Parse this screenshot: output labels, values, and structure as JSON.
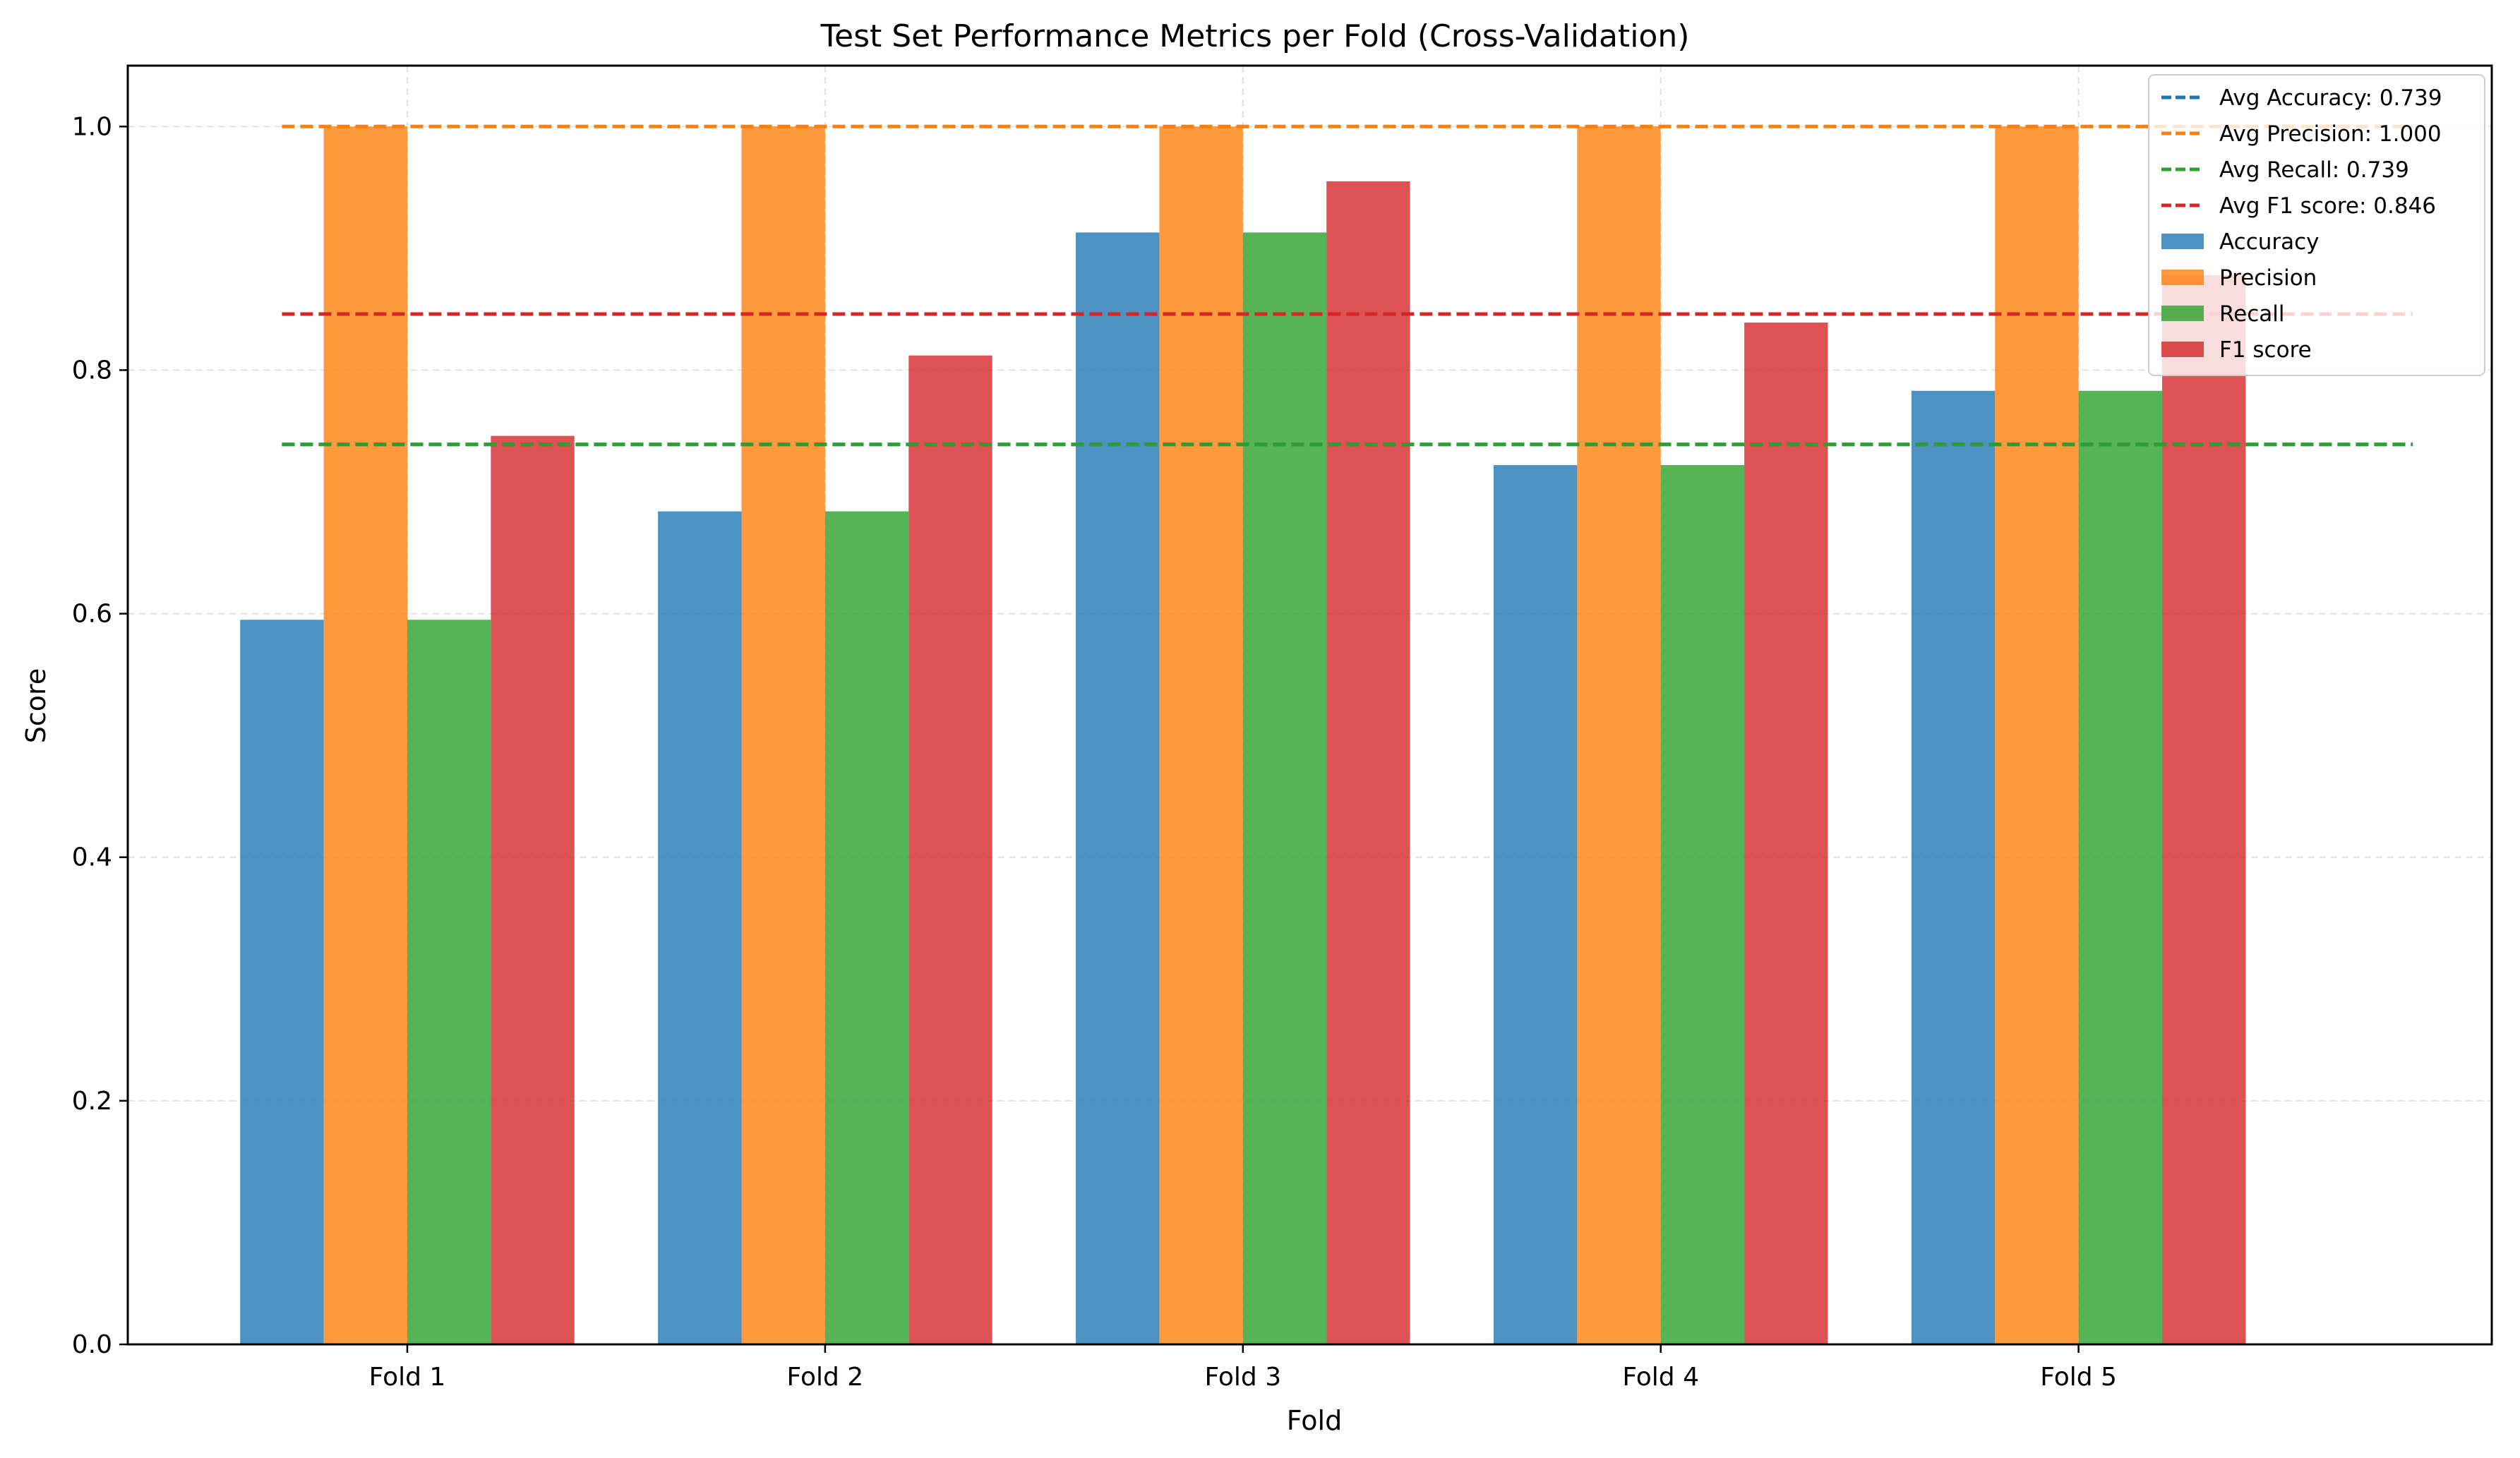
{
  "chart_data": {
    "type": "bar",
    "title": "Test Set Performance Metrics per Fold (Cross-Validation)",
    "xlabel": "Fold",
    "ylabel": "Score",
    "categories": [
      "Fold 1",
      "Fold 2",
      "Fold 3",
      "Fold 4",
      "Fold 5"
    ],
    "ylim": [
      0,
      1.05
    ],
    "yticks": [
      "0.0",
      "0.2",
      "0.4",
      "0.6",
      "0.8",
      "1.0"
    ],
    "ytick_values": [
      0,
      0.2,
      0.4,
      0.6,
      0.8,
      1.0
    ],
    "grid": true,
    "legend_position": "top-right",
    "series": [
      {
        "name": "Accuracy",
        "color": "#1f77b4",
        "values": [
          0.595,
          0.684,
          0.913,
          0.722,
          0.783
        ]
      },
      {
        "name": "Precision",
        "color": "#ff7f0e",
        "values": [
          1.0,
          1.0,
          1.0,
          1.0,
          1.0
        ]
      },
      {
        "name": "Recall",
        "color": "#2ca02c",
        "values": [
          0.595,
          0.684,
          0.913,
          0.722,
          0.783
        ]
      },
      {
        "name": "F1 score",
        "color": "#d62728",
        "values": [
          0.746,
          0.812,
          0.955,
          0.839,
          0.878
        ]
      }
    ],
    "average_lines": [
      {
        "label": "Avg Accuracy: 0.739",
        "value": 0.739,
        "color": "#1f77b4"
      },
      {
        "label": "Avg Precision: 1.000",
        "value": 1.0,
        "color": "#ff7f0e"
      },
      {
        "label": "Avg Recall: 0.739",
        "value": 0.739,
        "color": "#2ca02c"
      },
      {
        "label": "Avg F1 score: 0.846",
        "value": 0.846,
        "color": "#d62728"
      }
    ]
  }
}
